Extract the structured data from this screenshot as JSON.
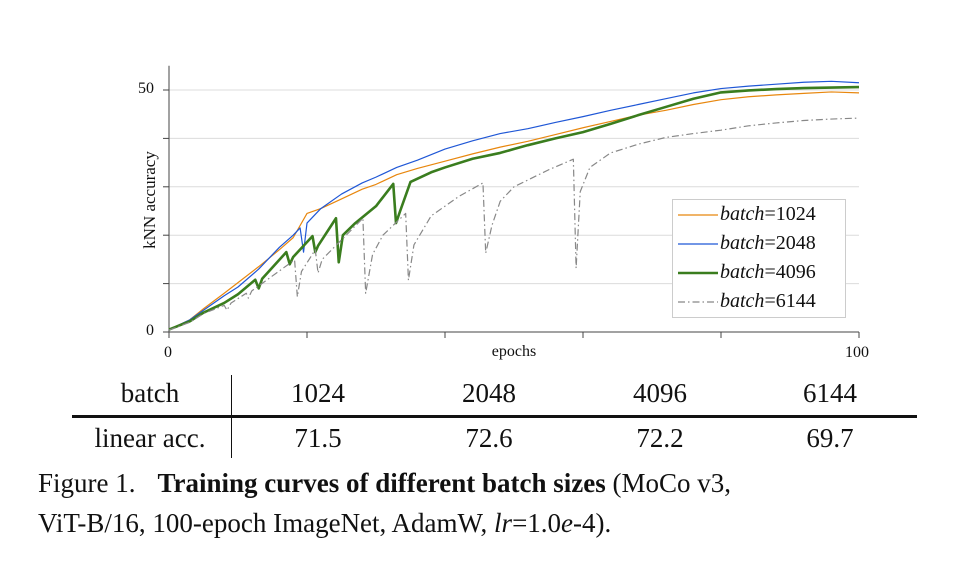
{
  "chart_data": {
    "type": "line",
    "xlabel": "epochs",
    "ylabel": "kNN accuracy",
    "xlim": [
      0,
      100
    ],
    "ylim": [
      0,
      55
    ],
    "x_ticks": [
      0,
      20,
      40,
      60,
      80,
      100
    ],
    "x_tick_labels": [
      "0",
      "",
      "",
      "",
      "",
      "100"
    ],
    "y_ticks": [
      0,
      10,
      20,
      30,
      40,
      50
    ],
    "y_tick_labels": [
      "0",
      "",
      "",
      "",
      "",
      "50"
    ],
    "grid": "horizontal",
    "legend_position": "bottom-right",
    "legend_prefix": "batch",
    "series": [
      {
        "name": "=1024",
        "color": "#e8870e",
        "style": "solid-thin",
        "points": [
          [
            0,
            0.5
          ],
          [
            3,
            2.5
          ],
          [
            5,
            4.8
          ],
          [
            8,
            8
          ],
          [
            10,
            10.2
          ],
          [
            13,
            13.5
          ],
          [
            16,
            17
          ],
          [
            18,
            19.5
          ],
          [
            20,
            24.5
          ],
          [
            22,
            25.5
          ],
          [
            25,
            27.5
          ],
          [
            28,
            29.5
          ],
          [
            30,
            30.5
          ],
          [
            33,
            32.5
          ],
          [
            36,
            33.8
          ],
          [
            40,
            35.3
          ],
          [
            44,
            36.8
          ],
          [
            48,
            38.2
          ],
          [
            52,
            39.4
          ],
          [
            56,
            40.8
          ],
          [
            60,
            42.2
          ],
          [
            64,
            43.5
          ],
          [
            68,
            44.8
          ],
          [
            72,
            45.8
          ],
          [
            76,
            47
          ],
          [
            80,
            48
          ],
          [
            84,
            48.6
          ],
          [
            88,
            49
          ],
          [
            92,
            49.3
          ],
          [
            96,
            49.6
          ],
          [
            100,
            49.4
          ]
        ]
      },
      {
        "name": "=2048",
        "color": "#1f57d6",
        "style": "solid-thin",
        "points": [
          [
            0,
            0.5
          ],
          [
            3,
            2.5
          ],
          [
            5,
            4.5
          ],
          [
            8,
            7.5
          ],
          [
            10,
            9.3
          ],
          [
            13,
            13
          ],
          [
            16,
            17.5
          ],
          [
            18,
            20
          ],
          [
            19,
            21.5
          ],
          [
            19.5,
            16.5
          ],
          [
            20,
            22.5
          ],
          [
            22,
            25.5
          ],
          [
            25,
            28.5
          ],
          [
            28,
            30.8
          ],
          [
            30,
            32
          ],
          [
            33,
            34
          ],
          [
            36,
            35.5
          ],
          [
            40,
            37.8
          ],
          [
            44,
            39.5
          ],
          [
            48,
            41
          ],
          [
            52,
            42
          ],
          [
            56,
            43.3
          ],
          [
            60,
            44.5
          ],
          [
            64,
            45.8
          ],
          [
            68,
            47
          ],
          [
            72,
            48.2
          ],
          [
            76,
            49.4
          ],
          [
            80,
            50.3
          ],
          [
            84,
            50.8
          ],
          [
            88,
            51.2
          ],
          [
            92,
            51.6
          ],
          [
            96,
            51.8
          ],
          [
            100,
            51.5
          ]
        ]
      },
      {
        "name": "=4096",
        "color": "#3a7d1e",
        "style": "solid-thick",
        "points": [
          [
            0,
            0.5
          ],
          [
            3,
            2.2
          ],
          [
            5,
            4
          ],
          [
            8,
            6
          ],
          [
            10,
            7.8
          ],
          [
            12.5,
            10.8
          ],
          [
            13,
            9
          ],
          [
            13.5,
            11
          ],
          [
            17,
            16.5
          ],
          [
            17.5,
            14
          ],
          [
            18,
            15.5
          ],
          [
            20.8,
            19.8
          ],
          [
            21.2,
            16.5
          ],
          [
            21.6,
            17.8
          ],
          [
            24.2,
            23.5
          ],
          [
            24.6,
            14.4
          ],
          [
            25.2,
            20
          ],
          [
            27,
            22.5
          ],
          [
            30,
            26
          ],
          [
            32.5,
            30.6
          ],
          [
            32.9,
            22.5
          ],
          [
            33.5,
            25
          ],
          [
            35,
            31
          ],
          [
            38,
            33
          ],
          [
            40,
            34
          ],
          [
            44,
            35.8
          ],
          [
            48,
            37
          ],
          [
            50,
            37.8
          ],
          [
            52,
            38.6
          ],
          [
            56,
            40
          ],
          [
            60,
            41.3
          ],
          [
            64,
            43
          ],
          [
            68,
            44.8
          ],
          [
            72,
            46.5
          ],
          [
            76,
            48.2
          ],
          [
            80,
            49.5
          ],
          [
            84,
            49.9
          ],
          [
            88,
            50.2
          ],
          [
            92,
            50.4
          ],
          [
            96,
            50.5
          ],
          [
            100,
            50.6
          ]
        ]
      },
      {
        "name": "=6144",
        "color": "#888888",
        "style": "dash-dot",
        "points": [
          [
            0,
            0.4
          ],
          [
            3,
            2
          ],
          [
            5,
            3.8
          ],
          [
            8,
            5.5
          ],
          [
            8.4,
            4.5
          ],
          [
            9,
            6
          ],
          [
            11.2,
            8
          ],
          [
            11.5,
            7
          ],
          [
            12,
            8.5
          ],
          [
            18.2,
            14.9
          ],
          [
            18.6,
            7.3
          ],
          [
            19.2,
            12.5
          ],
          [
            21.2,
            17
          ],
          [
            21.6,
            12.2
          ],
          [
            22.2,
            15
          ],
          [
            28.1,
            23.5
          ],
          [
            28.5,
            8
          ],
          [
            29.5,
            16
          ],
          [
            31,
            20
          ],
          [
            34.3,
            24.5
          ],
          [
            34.7,
            10.7
          ],
          [
            35.5,
            18
          ],
          [
            38,
            24
          ],
          [
            42,
            28
          ],
          [
            45.5,
            30.8
          ],
          [
            45.9,
            16.3
          ],
          [
            46.8,
            22
          ],
          [
            48,
            27
          ],
          [
            50,
            30
          ],
          [
            55,
            33.5
          ],
          [
            58.6,
            35.7
          ],
          [
            59,
            13.2
          ],
          [
            59.6,
            29
          ],
          [
            61,
            34
          ],
          [
            64,
            37
          ],
          [
            68,
            38.8
          ],
          [
            72,
            40.2
          ],
          [
            76,
            41
          ],
          [
            80,
            41.7
          ],
          [
            84,
            42.6
          ],
          [
            88,
            43.2
          ],
          [
            92,
            43.7
          ],
          [
            96,
            44
          ],
          [
            100,
            44.2
          ]
        ]
      }
    ]
  },
  "table": {
    "header": [
      "batch",
      "1024",
      "2048",
      "4096",
      "6144"
    ],
    "rows": [
      [
        "linear acc.",
        "71.5",
        "72.6",
        "72.2",
        "69.7"
      ]
    ]
  },
  "caption": {
    "label": "Figure 1.",
    "bold": "Training curves of different batch sizes",
    "rest1": " (MoCo v3,",
    "line2a": "ViT-B/16, 100-epoch ImageNet, AdamW, ",
    "lr_var": "lr",
    "lr_eq": "=1.0",
    "lr_e": "e",
    "lr_tail": "-4)."
  }
}
